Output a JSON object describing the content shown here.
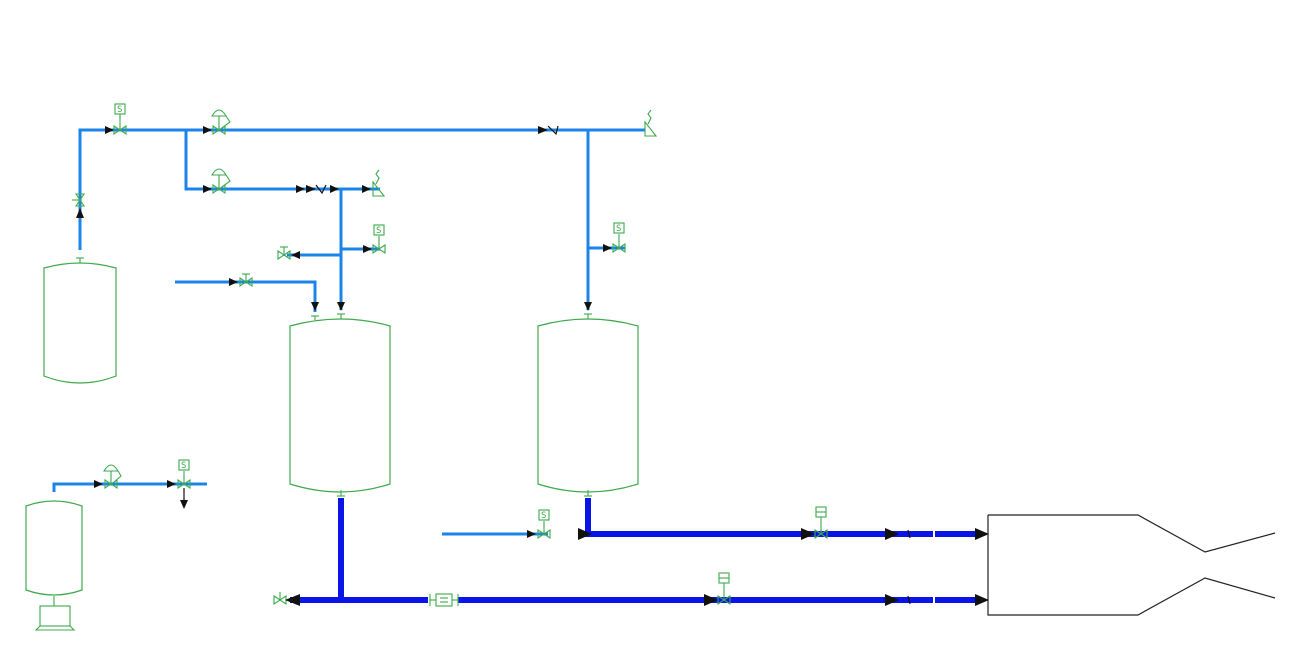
{
  "colors": {
    "gas_line": "#1a84e8",
    "propellant_line": "#0a14e6",
    "component": "#3caa4c",
    "flow_arrow": "#111111",
    "engine_outline": "#222222",
    "background": "#ffffff"
  },
  "components": {
    "solenoid_valve_label": "S",
    "icons": [
      "solenoid-valve-icon",
      "pressure-regulator-icon",
      "check-valve-icon",
      "relief-valve-icon",
      "manual-valve-icon",
      "filter-icon",
      "flow-meter-icon",
      "flow-arrow-icon"
    ]
  }
}
